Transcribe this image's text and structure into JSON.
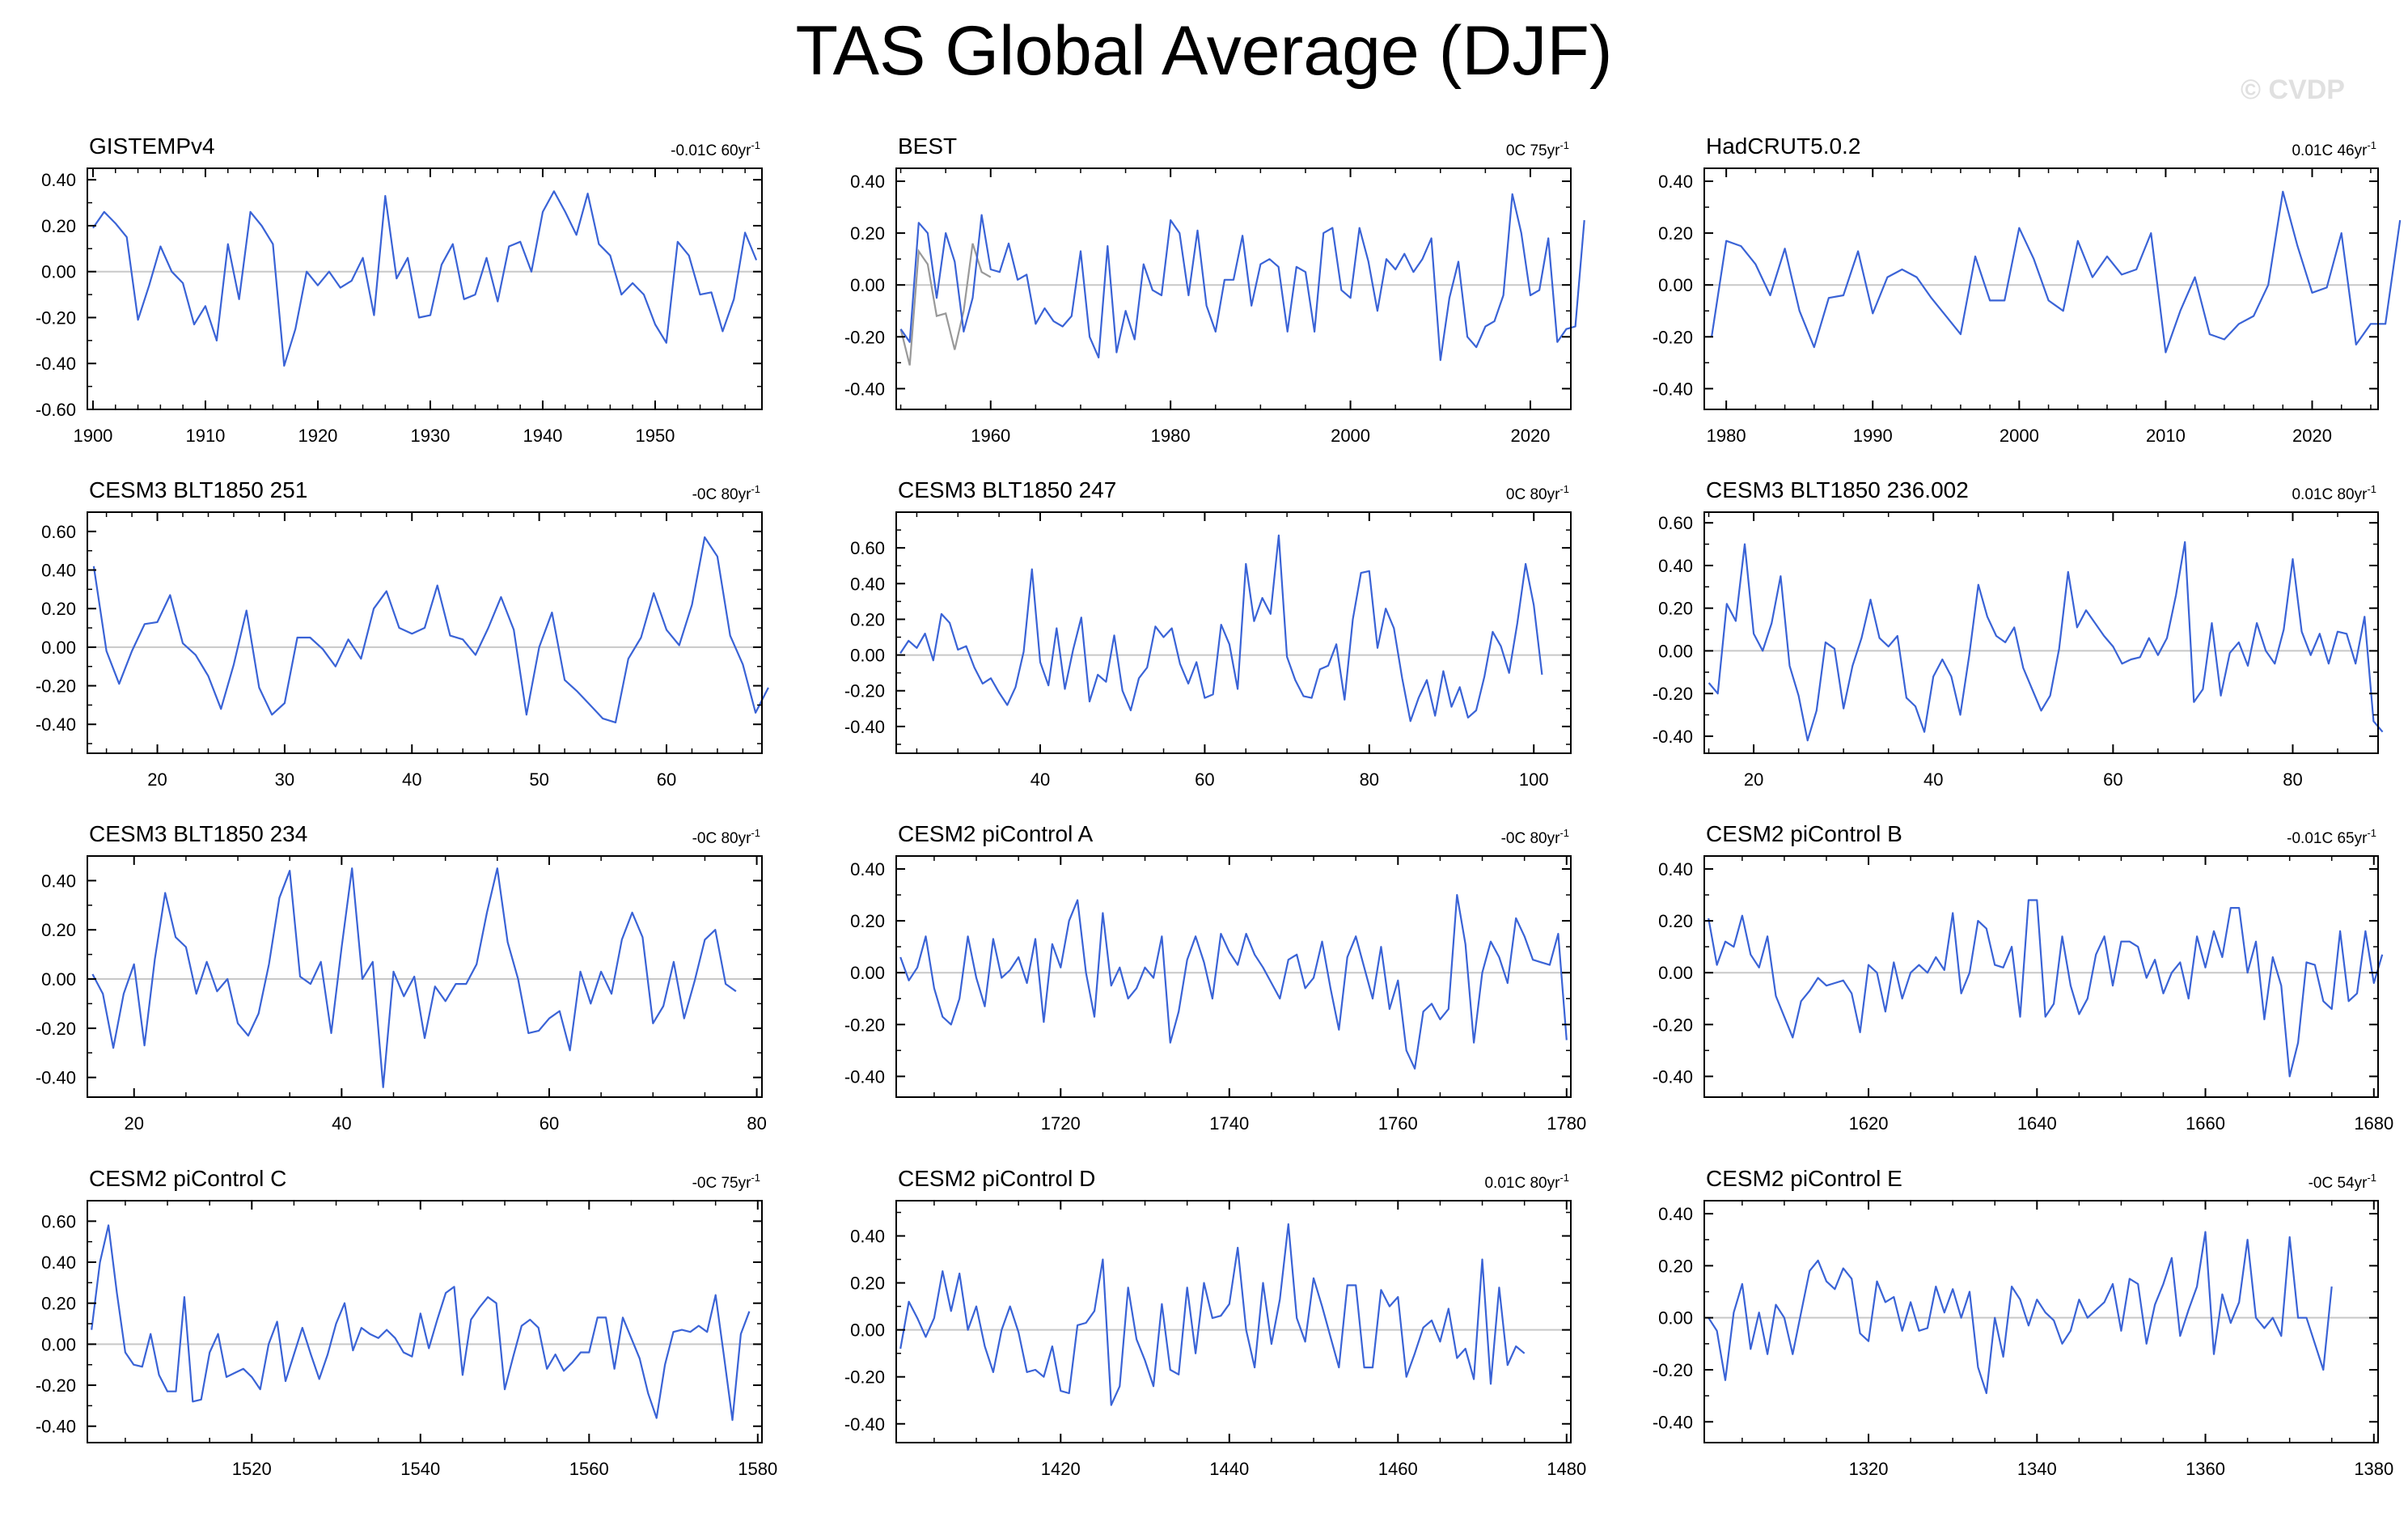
{
  "figure": {
    "title": "TAS Global Average (DJF)",
    "watermark": "© CVDP"
  },
  "style": {
    "line_color": "#3a63d6",
    "secondary_color": "#999999",
    "zero_line_color": "#c8c8c8"
  },
  "chart_data": [
    {
      "type": "line",
      "title": "GISTEMPv4",
      "trend": "-0.01C 60yr",
      "trend_sup": "-1",
      "xlim": [
        1899.5,
        1959.5
      ],
      "xticks": [
        1900,
        1910,
        1920,
        1930,
        1940,
        1950
      ],
      "ylim": [
        -0.6,
        0.45
      ],
      "yticks": [
        -0.6,
        -0.4,
        -0.2,
        0,
        0.2,
        0.4
      ],
      "x_start": 1900,
      "values": [
        0.19,
        0.26,
        0.21,
        0.15,
        -0.21,
        -0.06,
        0.11,
        0.0,
        -0.05,
        -0.23,
        -0.15,
        -0.3,
        0.12,
        -0.12,
        0.26,
        0.2,
        0.12,
        -0.41,
        -0.25,
        0.0,
        -0.06,
        0.0,
        -0.07,
        -0.04,
        0.06,
        -0.19,
        0.33,
        -0.03,
        0.06,
        -0.2,
        -0.19,
        0.03,
        0.12,
        -0.12,
        -0.1,
        0.06,
        -0.13,
        0.11,
        0.13,
        0.0,
        0.26,
        0.35,
        0.26,
        0.16,
        0.34,
        0.12,
        0.07,
        -0.1,
        -0.05,
        -0.1,
        -0.23,
        -0.31,
        0.13,
        0.07,
        -0.1,
        -0.09,
        -0.26,
        -0.12,
        0.17,
        0.05
      ]
    },
    {
      "type": "line",
      "title": "BEST",
      "trend": "0C 75yr",
      "trend_sup": "-1",
      "xlim": [
        1949.5,
        2024.5
      ],
      "xticks": [
        1960,
        1980,
        2000,
        2020
      ],
      "ylim": [
        -0.48,
        0.45
      ],
      "yticks": [
        -0.4,
        -0.2,
        0,
        0.2,
        0.4
      ],
      "x_start": 1950,
      "values": [
        -0.17,
        -0.22,
        0.24,
        0.2,
        -0.05,
        0.2,
        0.09,
        -0.18,
        -0.05,
        0.27,
        0.06,
        0.05,
        0.16,
        0.02,
        0.04,
        -0.15,
        -0.09,
        -0.14,
        -0.16,
        -0.12,
        0.13,
        -0.2,
        -0.28,
        0.15,
        -0.26,
        -0.1,
        -0.21,
        0.08,
        -0.02,
        -0.04,
        0.25,
        0.2,
        -0.04,
        0.21,
        -0.08,
        -0.18,
        0.02,
        0.02,
        0.19,
        -0.08,
        0.08,
        0.1,
        0.07,
        -0.18,
        0.07,
        0.05,
        -0.18,
        0.2,
        0.22,
        -0.02,
        -0.05,
        0.22,
        0.09,
        -0.1,
        0.1,
        0.06,
        0.12,
        0.05,
        0.1,
        0.18,
        -0.29,
        -0.05,
        0.09,
        -0.2,
        -0.24,
        -0.16,
        -0.14,
        -0.04,
        0.35,
        0.2,
        -0.04,
        -0.02,
        0.18,
        -0.22,
        -0.17,
        -0.16,
        0.25
      ],
      "secondary_x_start": 1950,
      "secondary_values": [
        -0.17,
        -0.31,
        0.13,
        0.08,
        -0.12,
        -0.11,
        -0.25,
        -0.1,
        0.16,
        0.05,
        0.03
      ]
    },
    {
      "type": "line",
      "title": "HadCRUT5.0.2",
      "trend": "0.01C 46yr",
      "trend_sup": "-1",
      "xlim": [
        1978.5,
        2024.5
      ],
      "xticks": [
        1980,
        1990,
        2000,
        2010,
        2020
      ],
      "ylim": [
        -0.48,
        0.45
      ],
      "yticks": [
        -0.4,
        -0.2,
        0,
        0.2,
        0.4
      ],
      "x_start": 1979,
      "values": [
        -0.2,
        0.17,
        0.15,
        0.08,
        -0.04,
        0.14,
        -0.1,
        -0.24,
        -0.05,
        -0.04,
        0.13,
        -0.11,
        0.03,
        0.06,
        0.03,
        -0.05,
        -0.12,
        -0.19,
        0.11,
        -0.06,
        -0.06,
        0.22,
        0.1,
        -0.06,
        -0.1,
        0.17,
        0.03,
        0.11,
        0.04,
        0.06,
        0.2,
        -0.26,
        -0.1,
        0.03,
        -0.19,
        -0.21,
        -0.15,
        -0.12,
        0.0,
        0.36,
        0.15,
        -0.03,
        -0.01,
        0.2,
        -0.23,
        -0.15,
        -0.15,
        0.25
      ]
    },
    {
      "type": "line",
      "title": "CESM3 BLT1850 251",
      "trend": "-0C 80yr",
      "trend_sup": "-1",
      "xlim": [
        14.5,
        67.5
      ],
      "xticks": [
        20,
        30,
        40,
        50,
        60
      ],
      "ylim": [
        -0.55,
        0.7
      ],
      "yticks": [
        -0.4,
        -0.2,
        0,
        0.2,
        0.4,
        0.6
      ],
      "x_start": 15,
      "values": [
        0.42,
        -0.02,
        -0.19,
        -0.02,
        0.12,
        0.13,
        0.27,
        0.02,
        -0.04,
        -0.15,
        -0.32,
        -0.09,
        0.19,
        -0.21,
        -0.35,
        -0.29,
        0.05,
        0.05,
        -0.01,
        -0.1,
        0.04,
        -0.06,
        0.2,
        0.29,
        0.1,
        0.07,
        0.1,
        0.32,
        0.06,
        0.04,
        -0.04,
        0.1,
        0.26,
        0.09,
        -0.35,
        0.0,
        0.18,
        -0.17,
        -0.23,
        -0.3,
        -0.37,
        -0.39,
        -0.06,
        0.05,
        0.28,
        0.09,
        0.01,
        0.22,
        0.57,
        0.47,
        0.06,
        -0.09,
        -0.34,
        -0.21
      ]
    },
    {
      "type": "line",
      "title": "CESM3 BLT1850 247",
      "trend": "0C 80yr",
      "trend_sup": "-1",
      "xlim": [
        22.5,
        104.5
      ],
      "xticks": [
        40,
        60,
        80,
        100
      ],
      "ylim": [
        -0.55,
        0.8
      ],
      "yticks": [
        -0.4,
        -0.2,
        0,
        0.2,
        0.4,
        0.6
      ],
      "x_start": 23,
      "values": [
        0.01,
        0.08,
        0.04,
        0.12,
        -0.03,
        0.23,
        0.18,
        0.03,
        0.05,
        -0.07,
        -0.16,
        -0.13,
        -0.21,
        -0.28,
        -0.18,
        0.02,
        0.48,
        -0.04,
        -0.17,
        0.15,
        -0.19,
        0.03,
        0.21,
        -0.26,
        -0.11,
        -0.15,
        0.11,
        -0.2,
        -0.31,
        -0.13,
        -0.07,
        0.16,
        0.1,
        0.15,
        -0.05,
        -0.16,
        -0.04,
        -0.24,
        -0.22,
        0.17,
        0.06,
        -0.19,
        0.51,
        0.19,
        0.32,
        0.23,
        0.67,
        -0.01,
        -0.14,
        -0.23,
        -0.24,
        -0.08,
        -0.06,
        0.06,
        -0.25,
        0.2,
        0.46,
        0.47,
        0.04,
        0.26,
        0.15,
        -0.13,
        -0.37,
        -0.24,
        -0.14,
        -0.34,
        -0.09,
        -0.29,
        -0.18,
        -0.35,
        -0.31,
        -0.12,
        0.13,
        0.05,
        -0.1,
        0.18,
        0.51,
        0.28,
        -0.11
      ]
    },
    {
      "type": "line",
      "title": "CESM3 BLT1850 236.002",
      "trend": "0.01C 80yr",
      "trend_sup": "-1",
      "xlim": [
        14.5,
        89.5
      ],
      "xticks": [
        20,
        40,
        60,
        80
      ],
      "ylim": [
        -0.48,
        0.65
      ],
      "yticks": [
        -0.4,
        -0.2,
        0,
        0.2,
        0.4,
        0.6
      ],
      "x_start": 15,
      "values": [
        -0.15,
        -0.2,
        0.22,
        0.14,
        0.5,
        0.08,
        0.0,
        0.13,
        0.35,
        -0.07,
        -0.21,
        -0.42,
        -0.28,
        0.04,
        0.01,
        -0.27,
        -0.07,
        0.06,
        0.24,
        0.06,
        0.02,
        0.07,
        -0.22,
        -0.26,
        -0.38,
        -0.12,
        -0.04,
        -0.12,
        -0.3,
        -0.02,
        0.31,
        0.16,
        0.07,
        0.04,
        0.11,
        -0.08,
        -0.18,
        -0.28,
        -0.21,
        0.01,
        0.37,
        0.11,
        0.19,
        0.13,
        0.07,
        0.02,
        -0.06,
        -0.04,
        -0.03,
        0.06,
        -0.02,
        0.06,
        0.26,
        0.51,
        -0.24,
        -0.18,
        0.13,
        -0.21,
        -0.01,
        0.04,
        -0.07,
        0.13,
        0.0,
        -0.06,
        0.1,
        0.43,
        0.09,
        -0.02,
        0.08,
        -0.06,
        0.09,
        0.08,
        -0.06,
        0.16,
        -0.33,
        -0.38
      ]
    },
    {
      "type": "line",
      "title": "CESM3 BLT1850 234",
      "trend": "-0C 80yr",
      "trend_sup": "-1",
      "xlim": [
        15.5,
        80.5
      ],
      "xticks": [
        20,
        40,
        60,
        80
      ],
      "ylim": [
        -0.48,
        0.5
      ],
      "yticks": [
        -0.4,
        -0.2,
        0,
        0.2,
        0.4
      ],
      "x_start": 16,
      "values": [
        0.02,
        -0.06,
        -0.28,
        -0.06,
        0.06,
        -0.27,
        0.08,
        0.35,
        0.17,
        0.13,
        -0.06,
        0.07,
        -0.05,
        0.0,
        -0.18,
        -0.23,
        -0.14,
        0.06,
        0.33,
        0.44,
        0.01,
        -0.02,
        0.07,
        -0.22,
        0.13,
        0.45,
        0.0,
        0.07,
        -0.44,
        0.03,
        -0.07,
        0.01,
        -0.24,
        -0.03,
        -0.09,
        -0.02,
        -0.02,
        0.06,
        0.27,
        0.45,
        0.15,
        0.0,
        -0.22,
        -0.21,
        -0.16,
        -0.13,
        -0.29,
        0.03,
        -0.1,
        0.03,
        -0.06,
        0.16,
        0.27,
        0.17,
        -0.18,
        -0.11,
        0.07,
        -0.16,
        -0.01,
        0.16,
        0.2,
        -0.02,
        -0.05
      ]
    },
    {
      "type": "line",
      "title": "CESM2 piControl A",
      "trend": "-0C 80yr",
      "trend_sup": "-1",
      "xlim": [
        1700.5,
        1780.5
      ],
      "xticks": [
        1720,
        1740,
        1760,
        1780
      ],
      "ylim": [
        -0.48,
        0.45
      ],
      "yticks": [
        -0.4,
        -0.2,
        0,
        0.2,
        0.4
      ],
      "x_start": 1701,
      "values": [
        0.06,
        -0.03,
        0.02,
        0.14,
        -0.06,
        -0.17,
        -0.2,
        -0.1,
        0.14,
        -0.02,
        -0.13,
        0.13,
        -0.02,
        0.01,
        0.06,
        -0.04,
        0.13,
        -0.19,
        0.11,
        0.02,
        0.2,
        0.28,
        0.0,
        -0.17,
        0.23,
        -0.05,
        0.02,
        -0.1,
        -0.06,
        0.02,
        -0.02,
        0.14,
        -0.27,
        -0.15,
        0.05,
        0.14,
        0.04,
        -0.1,
        0.15,
        0.08,
        0.03,
        0.15,
        0.07,
        0.02,
        -0.04,
        -0.1,
        0.05,
        0.07,
        -0.06,
        -0.02,
        0.12,
        -0.06,
        -0.22,
        0.06,
        0.14,
        0.02,
        -0.1,
        0.1,
        -0.14,
        -0.03,
        -0.3,
        -0.37,
        -0.15,
        -0.12,
        -0.18,
        -0.14,
        0.3,
        0.11,
        -0.27,
        0.0,
        0.12,
        0.06,
        -0.04,
        0.21,
        0.14,
        0.05,
        0.04,
        0.03,
        0.15,
        -0.26
      ]
    },
    {
      "type": "line",
      "title": "CESM2 piControl B",
      "trend": "-0.01C 65yr",
      "trend_sup": "-1",
      "xlim": [
        1600.5,
        1680.5
      ],
      "xticks": [
        1620,
        1640,
        1660,
        1680
      ],
      "ylim": [
        -0.48,
        0.45
      ],
      "yticks": [
        -0.4,
        -0.2,
        0,
        0.2,
        0.4
      ],
      "x_start": 1601,
      "values": [
        0.21,
        0.03,
        0.12,
        0.1,
        0.22,
        0.07,
        0.02,
        0.14,
        -0.09,
        -0.17,
        -0.25,
        -0.11,
        -0.07,
        -0.02,
        -0.05,
        -0.04,
        -0.03,
        -0.08,
        -0.23,
        0.03,
        0.0,
        -0.15,
        0.04,
        -0.1,
        0.0,
        0.03,
        0.0,
        0.06,
        0.01,
        0.23,
        -0.08,
        0.0,
        0.2,
        0.17,
        0.03,
        0.02,
        0.1,
        -0.17,
        0.28,
        0.28,
        -0.17,
        -0.12,
        0.14,
        -0.05,
        -0.16,
        -0.1,
        0.07,
        0.14,
        -0.05,
        0.12,
        0.12,
        0.1,
        -0.02,
        0.05,
        -0.08,
        0.0,
        0.04,
        -0.1,
        0.14,
        0.02,
        0.16,
        0.06,
        0.25,
        0.25,
        0.0,
        0.12,
        -0.18,
        0.06,
        -0.05,
        -0.4,
        -0.27,
        0.04,
        0.03,
        -0.11,
        -0.14,
        0.16,
        -0.11,
        -0.08,
        0.16,
        -0.04,
        0.07
      ]
    },
    {
      "type": "line",
      "title": "CESM2 piControl C",
      "trend": "-0C 75yr",
      "trend_sup": "-1",
      "xlim": [
        1500.5,
        1580.5
      ],
      "xticks": [
        1520,
        1540,
        1560,
        1580
      ],
      "ylim": [
        -0.48,
        0.7
      ],
      "yticks": [
        -0.4,
        -0.2,
        0,
        0.2,
        0.4,
        0.6
      ],
      "x_start": 1501,
      "values": [
        0.07,
        0.4,
        0.58,
        0.25,
        -0.04,
        -0.1,
        -0.11,
        0.05,
        -0.15,
        -0.23,
        -0.23,
        0.23,
        -0.28,
        -0.27,
        -0.04,
        0.05,
        -0.16,
        -0.14,
        -0.12,
        -0.16,
        -0.22,
        0.0,
        0.11,
        -0.18,
        -0.05,
        0.08,
        -0.05,
        -0.17,
        -0.05,
        0.1,
        0.2,
        -0.03,
        0.08,
        0.05,
        0.03,
        0.07,
        0.03,
        -0.04,
        -0.06,
        0.15,
        -0.02,
        0.12,
        0.25,
        0.28,
        -0.15,
        0.12,
        0.18,
        0.23,
        0.2,
        -0.22,
        -0.06,
        0.09,
        0.12,
        0.08,
        -0.12,
        -0.05,
        -0.13,
        -0.09,
        -0.04,
        -0.04,
        0.13,
        0.13,
        -0.12,
        0.13,
        0.03,
        -0.07,
        -0.24,
        -0.36,
        -0.1,
        0.06,
        0.07,
        0.06,
        0.09,
        0.06,
        0.24,
        -0.06,
        -0.37,
        0.05,
        0.16
      ]
    },
    {
      "type": "line",
      "title": "CESM2 piControl D",
      "trend": "0.01C 80yr",
      "trend_sup": "-1",
      "xlim": [
        1400.5,
        1480.5
      ],
      "xticks": [
        1420,
        1440,
        1460,
        1480
      ],
      "ylim": [
        -0.48,
        0.55
      ],
      "yticks": [
        -0.4,
        -0.2,
        0,
        0.2,
        0.4
      ],
      "x_start": 1401,
      "values": [
        -0.08,
        0.12,
        0.05,
        -0.03,
        0.05,
        0.25,
        0.08,
        0.24,
        0.0,
        0.1,
        -0.07,
        -0.18,
        0.0,
        0.1,
        -0.01,
        -0.18,
        -0.17,
        -0.2,
        -0.07,
        -0.26,
        -0.27,
        0.02,
        0.03,
        0.08,
        0.3,
        -0.32,
        -0.24,
        0.18,
        -0.04,
        -0.13,
        -0.24,
        0.11,
        -0.17,
        -0.19,
        0.18,
        -0.1,
        0.2,
        0.05,
        0.06,
        0.11,
        0.35,
        0.0,
        -0.16,
        0.2,
        -0.06,
        0.13,
        0.45,
        0.05,
        -0.05,
        0.22,
        0.1,
        -0.03,
        -0.16,
        0.19,
        0.19,
        -0.16,
        -0.16,
        0.17,
        0.1,
        0.14,
        -0.2,
        -0.1,
        0.01,
        0.04,
        -0.05,
        0.09,
        -0.12,
        -0.08,
        -0.21,
        0.3,
        -0.23,
        0.18,
        -0.15,
        -0.07,
        -0.1
      ]
    },
    {
      "type": "line",
      "title": "CESM2 piControl E",
      "trend": "-0C 54yr",
      "trend_sup": "-1",
      "xlim": [
        1300.5,
        1380.5
      ],
      "xticks": [
        1320,
        1340,
        1360,
        1380
      ],
      "ylim": [
        -0.48,
        0.45
      ],
      "yticks": [
        -0.4,
        -0.2,
        0,
        0.2,
        0.4
      ],
      "x_start": 1301,
      "values": [
        0.0,
        -0.05,
        -0.24,
        0.02,
        0.13,
        -0.12,
        0.02,
        -0.14,
        0.05,
        0.0,
        -0.14,
        0.02,
        0.18,
        0.22,
        0.14,
        0.11,
        0.19,
        0.15,
        -0.06,
        -0.09,
        0.14,
        0.06,
        0.08,
        -0.05,
        0.06,
        -0.05,
        -0.04,
        0.12,
        0.02,
        0.11,
        0.0,
        0.1,
        -0.19,
        -0.29,
        0.0,
        -0.15,
        0.12,
        0.07,
        -0.03,
        0.07,
        0.02,
        -0.01,
        -0.1,
        -0.05,
        0.07,
        0.0,
        0.03,
        0.06,
        0.13,
        -0.05,
        0.15,
        0.13,
        -0.1,
        0.05,
        0.13,
        0.23,
        -0.07,
        0.03,
        0.12,
        0.33,
        -0.14,
        0.09,
        -0.02,
        0.06,
        0.3,
        0.0,
        -0.04,
        0.0,
        -0.07,
        0.31,
        0.0,
        0.0,
        -0.1,
        -0.2,
        0.12
      ]
    }
  ]
}
